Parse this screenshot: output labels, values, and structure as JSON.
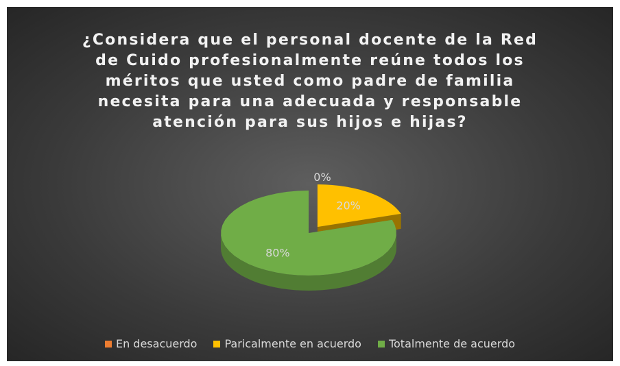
{
  "chart_data": {
    "type": "pie",
    "title": "¿Considera que el personal docente de la Red de Cuido profesionalmente reúne todos los méritos que usted como padre de familia necesita para una adecuada y responsable atención para sus hijos e hijas?",
    "categories": [
      "En desacuerdo",
      "Paricalmente en acuerdo",
      "Totalmente de acuerdo"
    ],
    "values": [
      0,
      20,
      80
    ],
    "value_labels": [
      "0%",
      "20%",
      "80%"
    ],
    "colors": [
      "#ed7d31",
      "#ffc000",
      "#70ad47"
    ],
    "legend": "bottom"
  }
}
